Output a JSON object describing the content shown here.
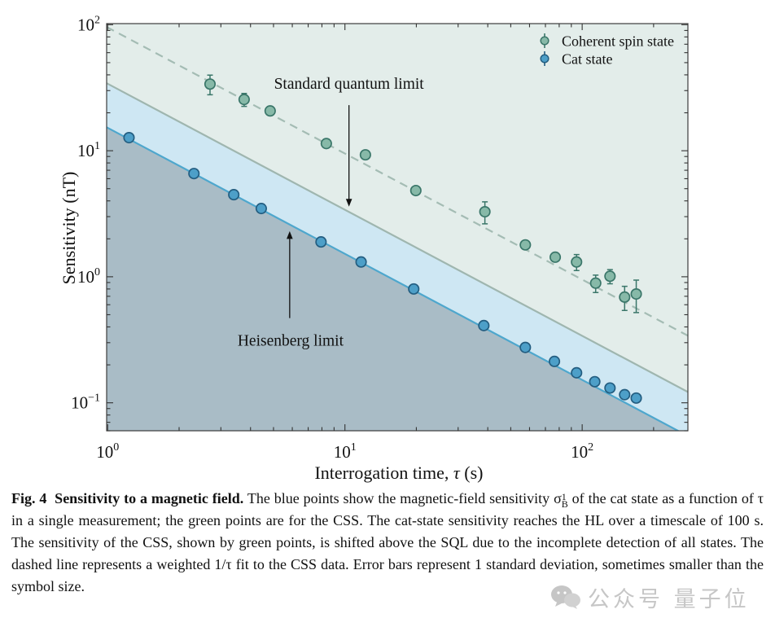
{
  "figure": {
    "caption": {
      "label_bold": "Fig. 4  Sensitivity to a magnetic field.",
      "body_pre_sigma": " The blue points show the magnetic-field sensitivity ",
      "sigma_base": "σ",
      "sigma_sup": "1",
      "sigma_sub": "B",
      "body_post_sigma": " of the cat state as a function of τ in a single measurement; the green points are for the CSS. The cat-state sensitivity reaches the HL over a timescale of 100 s. The sensitivity of the CSS, shown by green points, is shifted above the SQL due to the incomplete detection of all states. The dashed line represents a weighted 1/τ fit to the CSS data. Error bars represent 1 standard deviation, sometimes smaller than the symbol size."
    },
    "watermark": {
      "text": "公众号 量子位"
    }
  },
  "chart_data": {
    "type": "scatter",
    "title": "",
    "xlabel": "Interrogation time, τ (s)",
    "ylabel": "Sensitivity (nT)",
    "xscale": "log",
    "yscale": "log",
    "xlim": [
      0.99,
      279
    ],
    "ylim": [
      0.06,
      102
    ],
    "x_tick_exponents": [
      0,
      1,
      2
    ],
    "y_tick_exponents": [
      2,
      1,
      0,
      -1
    ],
    "grid": false,
    "legend_position": "upper right",
    "regions": {
      "above_sql_color": "#e3edea",
      "between_color": "#cee7f3",
      "below_hl_color": "#a9bcc6"
    },
    "lines": [
      {
        "name": "Standard quantum limit",
        "style": "solid",
        "k_nT_s": 34.0,
        "color": "#9fb6af",
        "width": 2.2
      },
      {
        "name": "Heisenberg limit",
        "style": "solid",
        "k_nT_s": 15.2,
        "color": "#4ea7cd",
        "width": 2.2
      },
      {
        "name": "Weighted 1/τ fit to CSS data",
        "style": "dashed",
        "k_nT_s": 95.0,
        "color": "#a4bcb4",
        "width": 2.2
      }
    ],
    "series": [
      {
        "name": "Coherent spin state",
        "marker_fill": "#87b9a8",
        "marker_stroke": "#3a7669",
        "points": [
          {
            "tau": 2.7,
            "s": 33.8,
            "err": 6.0
          },
          {
            "tau": 3.76,
            "s": 25.5,
            "err": 3.0
          },
          {
            "tau": 4.84,
            "s": 20.7,
            "err": 1.5
          },
          {
            "tau": 8.35,
            "s": 11.4,
            "err": 0.8
          },
          {
            "tau": 12.2,
            "s": 9.28,
            "err": 0.7
          },
          {
            "tau": 19.9,
            "s": 4.83,
            "err": 0.35
          },
          {
            "tau": 38.9,
            "s": 3.28,
            "err": 0.65
          },
          {
            "tau": 57.6,
            "s": 1.79,
            "err": 0.13
          },
          {
            "tau": 77.0,
            "s": 1.43,
            "err": 0.11
          },
          {
            "tau": 94.7,
            "s": 1.31,
            "err": 0.19
          },
          {
            "tau": 114.0,
            "s": 0.89,
            "err": 0.14
          },
          {
            "tau": 131.0,
            "s": 1.01,
            "err": 0.13
          },
          {
            "tau": 151.0,
            "s": 0.69,
            "err": 0.15
          },
          {
            "tau": 169.0,
            "s": 0.73,
            "err": 0.21
          }
        ]
      },
      {
        "name": "Cat state",
        "marker_fill": "#4d9fc8",
        "marker_stroke": "#235d80",
        "points": [
          {
            "tau": 1.23,
            "s": 12.7,
            "err": 0
          },
          {
            "tau": 2.31,
            "s": 6.59,
            "err": 0
          },
          {
            "tau": 3.4,
            "s": 4.48,
            "err": 0
          },
          {
            "tau": 4.44,
            "s": 3.48,
            "err": 0
          },
          {
            "tau": 7.93,
            "s": 1.89,
            "err": 0
          },
          {
            "tau": 11.7,
            "s": 1.31,
            "err": 0
          },
          {
            "tau": 19.5,
            "s": 0.8,
            "err": 0
          },
          {
            "tau": 38.5,
            "s": 0.41,
            "err": 0
          },
          {
            "tau": 57.6,
            "s": 0.275,
            "err": 0
          },
          {
            "tau": 76.4,
            "s": 0.213,
            "err": 0
          },
          {
            "tau": 94.7,
            "s": 0.173,
            "err": 0
          },
          {
            "tau": 113.0,
            "s": 0.147,
            "err": 0
          },
          {
            "tau": 131.0,
            "s": 0.131,
            "err": 0
          },
          {
            "tau": 151.0,
            "s": 0.116,
            "err": 0
          },
          {
            "tau": 169.0,
            "s": 0.109,
            "err": 0
          }
        ]
      }
    ],
    "annotations": [
      {
        "text": "Standard quantum limit",
        "text_tau": 10.4,
        "text_s": 31.0,
        "arrow_tau": 10.4,
        "arrow_from_s": 23.0,
        "arrow_to_s": 3.6
      },
      {
        "text": "Heisenberg limit",
        "text_tau": 5.9,
        "text_s": 0.285,
        "arrow_tau": 5.85,
        "arrow_from_s": 0.47,
        "arrow_to_s": 2.3
      }
    ]
  }
}
